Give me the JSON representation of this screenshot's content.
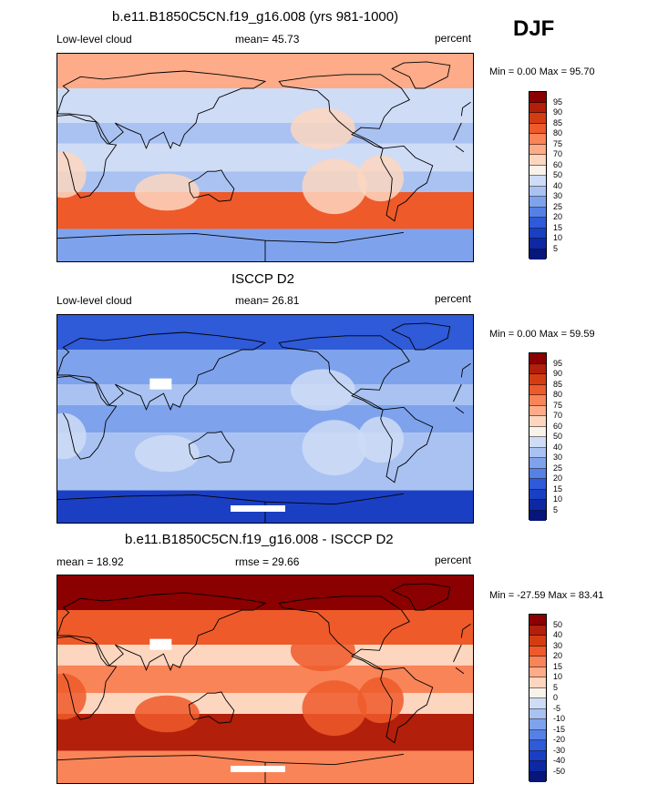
{
  "season": "DJF",
  "chart_data": [
    {
      "type": "heatmap",
      "title": "b.e11.B1850C5CN.f19_g16.008 (yrs 981-1000)",
      "left_label": "Low-level cloud",
      "mean_text": "mean=  45.73",
      "units": "percent",
      "minmax_text": "Min =   0.00 Max =  95.70",
      "min": 0.0,
      "max": 95.7,
      "colorbar_levels": [
        "95",
        "90",
        "85",
        "80",
        "75",
        "70",
        "60",
        "50",
        "40",
        "30",
        "25",
        "20",
        "15",
        "10",
        "5"
      ],
      "colorbar_colors": [
        "#8b0000",
        "#b21f0a",
        "#d43d12",
        "#ee5a2a",
        "#f98458",
        "#fdab88",
        "#fdd6c0",
        "#f7f2ea",
        "#cfdcf6",
        "#a9c2f2",
        "#7ea3ec",
        "#5680e6",
        "#2f5ad8",
        "#1b3fc2",
        "#0e28a4",
        "#07167a"
      ],
      "regions": {
        "arctic": 70,
        "north_midlat": 45,
        "subtropics": 30,
        "tropics": 40,
        "southern_ocean": 80,
        "antarctica": 25,
        "east_pacific_sc": 65
      }
    },
    {
      "type": "heatmap",
      "title": "ISCCP D2",
      "left_label": "Low-level cloud",
      "mean_text": "mean=  26.81",
      "units": "percent",
      "minmax_text": "Min =   0.00 Max =  59.59",
      "min": 0.0,
      "max": 59.59,
      "colorbar_levels": [
        "95",
        "90",
        "85",
        "80",
        "75",
        "70",
        "60",
        "50",
        "40",
        "30",
        "25",
        "20",
        "15",
        "10",
        "5"
      ],
      "colorbar_colors": [
        "#8b0000",
        "#b21f0a",
        "#d43d12",
        "#ee5a2a",
        "#f98458",
        "#fdab88",
        "#fdd6c0",
        "#f7f2ea",
        "#cfdcf6",
        "#a9c2f2",
        "#7ea3ec",
        "#5680e6",
        "#2f5ad8",
        "#1b3fc2",
        "#0e28a4",
        "#07167a"
      ],
      "regions": {
        "arctic": 15,
        "north_midlat": 25,
        "subtropics": 30,
        "tropics": 25,
        "southern_ocean": 35,
        "antarctica": 10,
        "east_pacific_sc": 40
      }
    },
    {
      "type": "heatmap",
      "title": "b.e11.B1850C5CN.f19_g16.008 - ISCCP D2",
      "left_label": "mean =  18.92",
      "mean_text": "rmse =  29.66",
      "units": "percent",
      "minmax_text": "Min = -27.59 Max =  83.41",
      "min": -27.59,
      "max": 83.41,
      "colorbar_levels": [
        "50",
        "40",
        "30",
        "20",
        "15",
        "10",
        "5",
        "0",
        "-5",
        "-10",
        "-15",
        "-20",
        "-30",
        "-40",
        "-50"
      ],
      "colorbar_colors": [
        "#8b0000",
        "#b21f0a",
        "#d43d12",
        "#ee5a2a",
        "#f98458",
        "#fdab88",
        "#fdd6c0",
        "#f7f2ea",
        "#cfdcf6",
        "#a9c2f2",
        "#7ea3ec",
        "#5680e6",
        "#2f5ad8",
        "#1b3fc2",
        "#0e28a4",
        "#07167a"
      ],
      "regions": {
        "arctic": 50,
        "north_midlat": 20,
        "subtropics": 5,
        "tropics": 15,
        "southern_ocean": 45,
        "antarctica": 15,
        "east_pacific_sc": 25
      }
    }
  ]
}
